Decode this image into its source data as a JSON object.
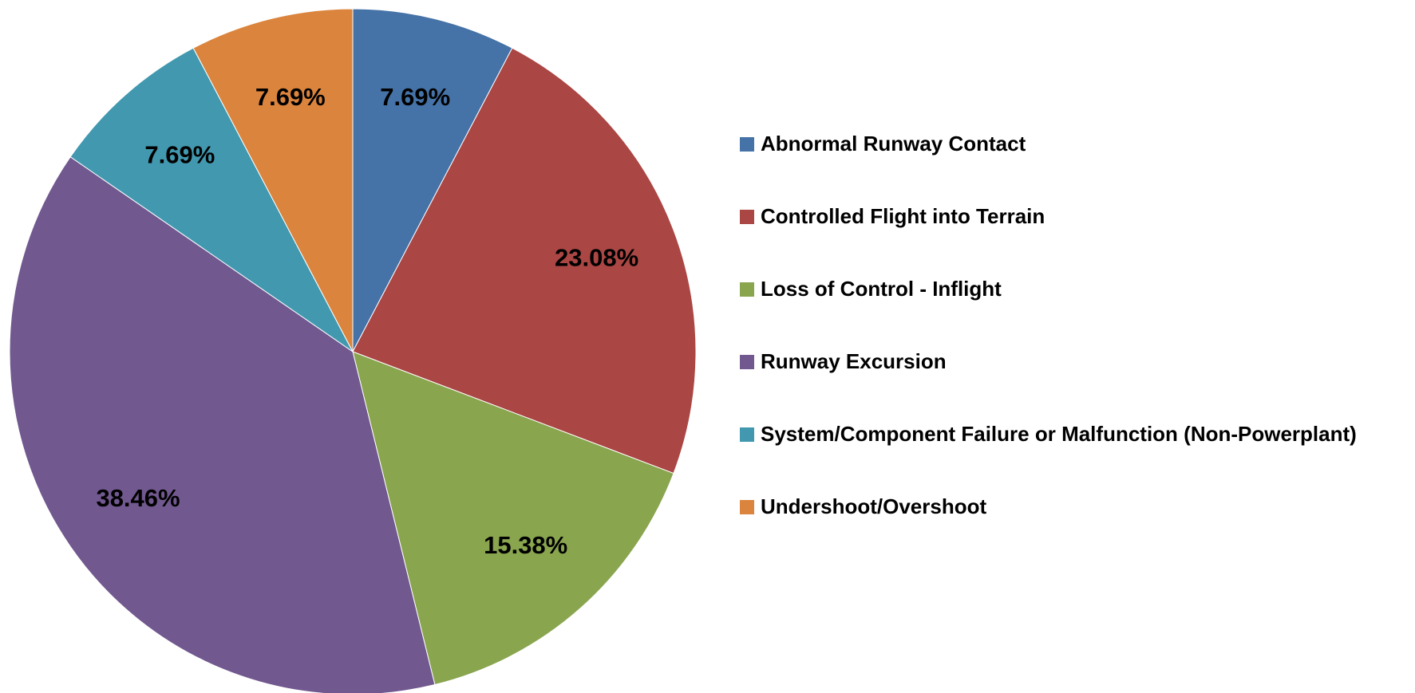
{
  "chart_data": {
    "type": "pie",
    "categories": [
      "Abnormal Runway Contact",
      "Controlled Flight into Terrain",
      "Loss of Control - Inflight",
      "Runway Excursion",
      "System/Component Failure or Malfunction (Non-Powerplant)",
      "Undershoot/Overshoot"
    ],
    "values": [
      7.69,
      23.08,
      15.38,
      38.46,
      7.69,
      7.69
    ],
    "value_labels": [
      "7.69%",
      "23.08%",
      "15.38%",
      "38.46%",
      "7.69%",
      "7.69%"
    ],
    "colors": [
      "#4572a7",
      "#aa4643",
      "#89a54e",
      "#71588f",
      "#4198af",
      "#db843d"
    ],
    "legend": "right"
  }
}
